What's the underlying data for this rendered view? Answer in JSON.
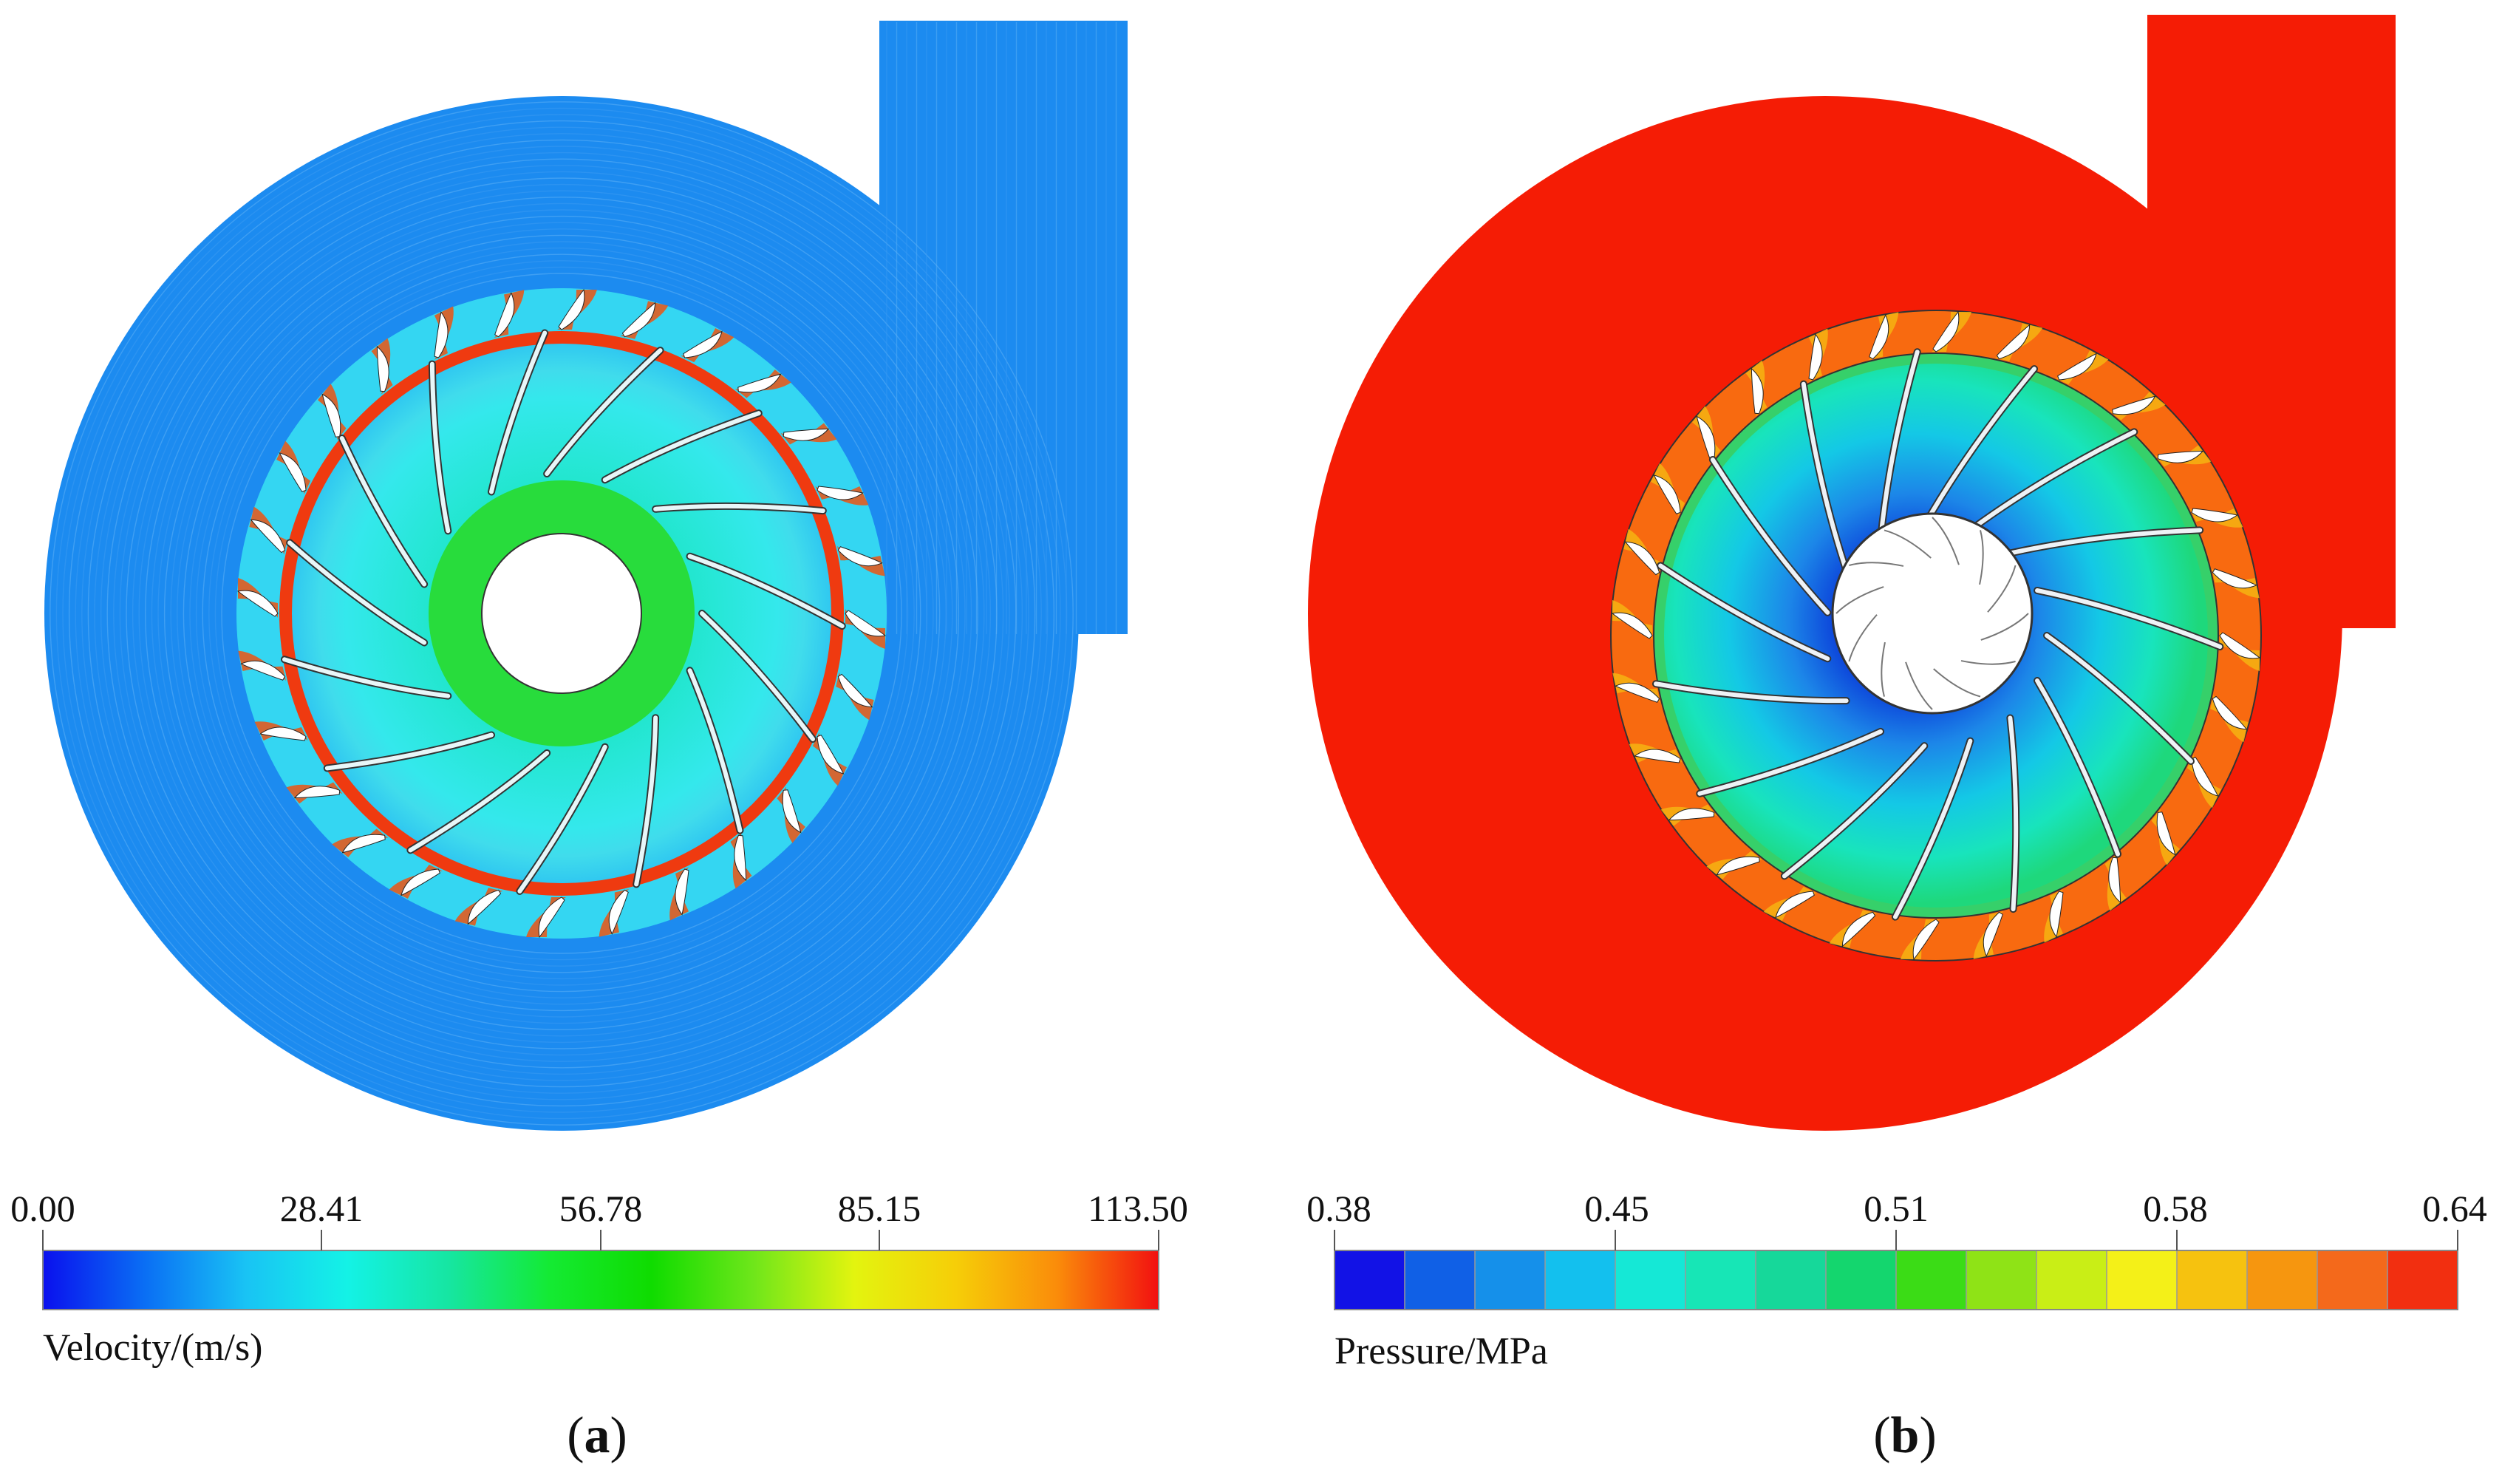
{
  "panels": [
    {
      "id": "a",
      "caption_open": "(",
      "caption_letter": "a",
      "caption_close": ")",
      "field": "velocity",
      "colorbar": {
        "title": "Velocity/(m/s)",
        "ticks": [
          "0.00",
          "28.41",
          "56.78",
          "85.15",
          "113.50"
        ],
        "mode": "continuous",
        "colors": [
          "#0a10ee",
          "#0a6ef4",
          "#19c3f4",
          "#14f2e6",
          "#16e6a2",
          "#14ea33",
          "#0fdc00",
          "#6ee61a",
          "#e3f40f",
          "#f6ce08",
          "#fa8c0a",
          "#f21010"
        ]
      }
    },
    {
      "id": "b",
      "caption_open": "(",
      "caption_letter": "b",
      "caption_close": ")",
      "field": "pressure",
      "colorbar": {
        "title": "Pressure/MPa",
        "ticks": [
          "0.38",
          "0.45",
          "0.51",
          "0.58",
          "0.64"
        ],
        "mode": "banded",
        "colors": [
          "#1212e6",
          "#1060e6",
          "#1590ea",
          "#13c0ee",
          "#15e8d6",
          "#17e6b6",
          "#16d89a",
          "#14d66e",
          "#3bdc16",
          "#8fe316",
          "#c9ee16",
          "#f4f018",
          "#f6c20f",
          "#f6960f",
          "#f4691b",
          "#f22f10"
        ]
      }
    }
  ],
  "colors": {
    "volute_velocity": "#1c8bf0",
    "volute_pressure": "#f51c05",
    "blade": "#ffffff",
    "hub": "#ffffff"
  }
}
